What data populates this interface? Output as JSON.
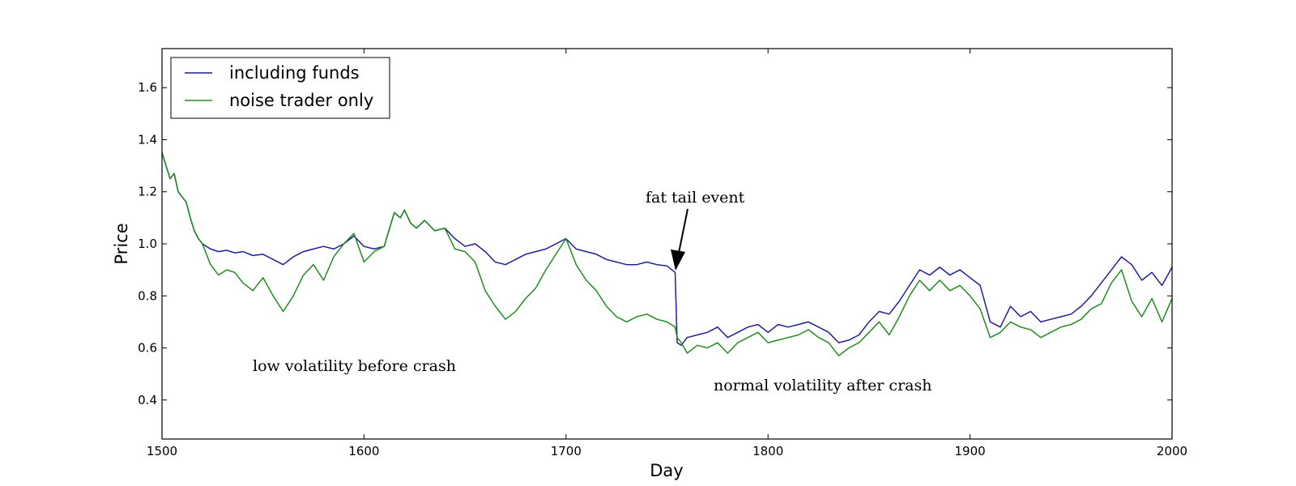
{
  "chart_data": {
    "type": "line",
    "title": "",
    "xlabel": "Day",
    "ylabel": "Price",
    "xlim": [
      1500,
      2000
    ],
    "ylim": [
      0.25,
      1.75
    ],
    "xticks": [
      1500,
      1600,
      1700,
      1800,
      1900,
      2000
    ],
    "xtick_labels": [
      "1500",
      "1600",
      "1700",
      "1800",
      "1900",
      "2000"
    ],
    "yticks": [
      0.4,
      0.6,
      0.8,
      1.0,
      1.2,
      1.4,
      1.6
    ],
    "ytick_labels": [
      "0.4",
      "0.6",
      "0.8",
      "1.0",
      "1.2",
      "1.4",
      "1.6"
    ],
    "grid": false,
    "legend_position": "top-left",
    "series": [
      {
        "name": "including funds",
        "color": "#1f1f99",
        "x": [
          1500,
          1502,
          1504,
          1506,
          1508,
          1510,
          1512,
          1514,
          1516,
          1518,
          1520,
          1524,
          1528,
          1532,
          1536,
          1540,
          1545,
          1550,
          1555,
          1560,
          1565,
          1570,
          1575,
          1580,
          1585,
          1590,
          1595,
          1600,
          1605,
          1610,
          1615,
          1618,
          1620,
          1623,
          1626,
          1630,
          1635,
          1640,
          1645,
          1650,
          1655,
          1660,
          1665,
          1670,
          1675,
          1680,
          1685,
          1690,
          1695,
          1700,
          1705,
          1710,
          1715,
          1720,
          1725,
          1730,
          1735,
          1740,
          1745,
          1750,
          1754,
          1755,
          1757,
          1760,
          1765,
          1770,
          1775,
          1780,
          1785,
          1790,
          1795,
          1800,
          1805,
          1810,
          1815,
          1820,
          1825,
          1830,
          1835,
          1840,
          1845,
          1850,
          1855,
          1860,
          1865,
          1870,
          1875,
          1880,
          1885,
          1890,
          1895,
          1900,
          1905,
          1910,
          1915,
          1920,
          1925,
          1930,
          1935,
          1940,
          1945,
          1950,
          1955,
          1960,
          1965,
          1970,
          1975,
          1980,
          1985,
          1990,
          1995,
          2000
        ],
        "y": [
          1.35,
          1.3,
          1.25,
          1.27,
          1.2,
          1.18,
          1.16,
          1.1,
          1.05,
          1.02,
          1.0,
          0.98,
          0.97,
          0.975,
          0.965,
          0.97,
          0.955,
          0.96,
          0.94,
          0.92,
          0.95,
          0.97,
          0.98,
          0.99,
          0.98,
          1.0,
          1.03,
          0.99,
          0.98,
          0.99,
          1.12,
          1.1,
          1.13,
          1.08,
          1.06,
          1.09,
          1.05,
          1.06,
          1.02,
          0.99,
          1.0,
          0.97,
          0.93,
          0.92,
          0.94,
          0.96,
          0.97,
          0.98,
          1.0,
          1.02,
          0.98,
          0.97,
          0.96,
          0.94,
          0.93,
          0.92,
          0.92,
          0.93,
          0.92,
          0.915,
          0.89,
          0.62,
          0.61,
          0.64,
          0.65,
          0.66,
          0.68,
          0.64,
          0.66,
          0.68,
          0.69,
          0.66,
          0.69,
          0.68,
          0.69,
          0.7,
          0.68,
          0.66,
          0.62,
          0.63,
          0.65,
          0.7,
          0.74,
          0.73,
          0.78,
          0.84,
          0.9,
          0.88,
          0.91,
          0.88,
          0.9,
          0.87,
          0.84,
          0.7,
          0.68,
          0.76,
          0.72,
          0.74,
          0.7,
          0.71,
          0.72,
          0.73,
          0.76,
          0.8,
          0.85,
          0.9,
          0.95,
          0.92,
          0.86,
          0.89,
          0.84,
          0.91
        ]
      },
      {
        "name": "noise trader only",
        "color": "#228b22",
        "x": [
          1500,
          1502,
          1504,
          1506,
          1508,
          1510,
          1512,
          1514,
          1516,
          1518,
          1520,
          1524,
          1528,
          1532,
          1536,
          1540,
          1545,
          1550,
          1555,
          1560,
          1565,
          1570,
          1575,
          1580,
          1585,
          1590,
          1595,
          1600,
          1605,
          1610,
          1615,
          1618,
          1620,
          1623,
          1626,
          1630,
          1635,
          1640,
          1645,
          1650,
          1655,
          1660,
          1665,
          1670,
          1675,
          1680,
          1685,
          1690,
          1695,
          1700,
          1705,
          1710,
          1715,
          1720,
          1725,
          1730,
          1735,
          1740,
          1745,
          1750,
          1754,
          1755,
          1757,
          1760,
          1765,
          1770,
          1775,
          1780,
          1785,
          1790,
          1795,
          1800,
          1805,
          1810,
          1815,
          1820,
          1825,
          1830,
          1835,
          1840,
          1845,
          1850,
          1855,
          1860,
          1865,
          1870,
          1875,
          1880,
          1885,
          1890,
          1895,
          1900,
          1905,
          1910,
          1915,
          1920,
          1925,
          1930,
          1935,
          1940,
          1945,
          1950,
          1955,
          1960,
          1965,
          1970,
          1975,
          1980,
          1985,
          1990,
          1995,
          2000
        ],
        "y": [
          1.35,
          1.3,
          1.25,
          1.27,
          1.2,
          1.18,
          1.16,
          1.1,
          1.05,
          1.02,
          1.0,
          0.92,
          0.88,
          0.9,
          0.89,
          0.85,
          0.82,
          0.87,
          0.8,
          0.74,
          0.8,
          0.88,
          0.92,
          0.86,
          0.95,
          1.0,
          1.04,
          0.93,
          0.97,
          0.99,
          1.12,
          1.1,
          1.13,
          1.08,
          1.06,
          1.09,
          1.05,
          1.06,
          0.98,
          0.97,
          0.93,
          0.82,
          0.76,
          0.71,
          0.74,
          0.79,
          0.83,
          0.9,
          0.96,
          1.02,
          0.92,
          0.86,
          0.82,
          0.76,
          0.72,
          0.7,
          0.72,
          0.73,
          0.71,
          0.7,
          0.68,
          0.64,
          0.62,
          0.58,
          0.61,
          0.6,
          0.62,
          0.58,
          0.62,
          0.64,
          0.66,
          0.62,
          0.63,
          0.64,
          0.65,
          0.67,
          0.64,
          0.62,
          0.57,
          0.6,
          0.62,
          0.66,
          0.7,
          0.65,
          0.72,
          0.8,
          0.86,
          0.82,
          0.86,
          0.82,
          0.84,
          0.8,
          0.75,
          0.64,
          0.66,
          0.7,
          0.68,
          0.67,
          0.64,
          0.66,
          0.68,
          0.69,
          0.71,
          0.75,
          0.77,
          0.85,
          0.9,
          0.78,
          0.72,
          0.79,
          0.7,
          0.79
        ]
      }
    ],
    "annotations": [
      {
        "text": "fat tail event",
        "x_data": 1752,
        "y_data": 0.9,
        "type": "arrow"
      },
      {
        "text": "low volatility before crash",
        "type": "text"
      },
      {
        "text": "normal volatility after crash",
        "type": "text"
      }
    ]
  }
}
